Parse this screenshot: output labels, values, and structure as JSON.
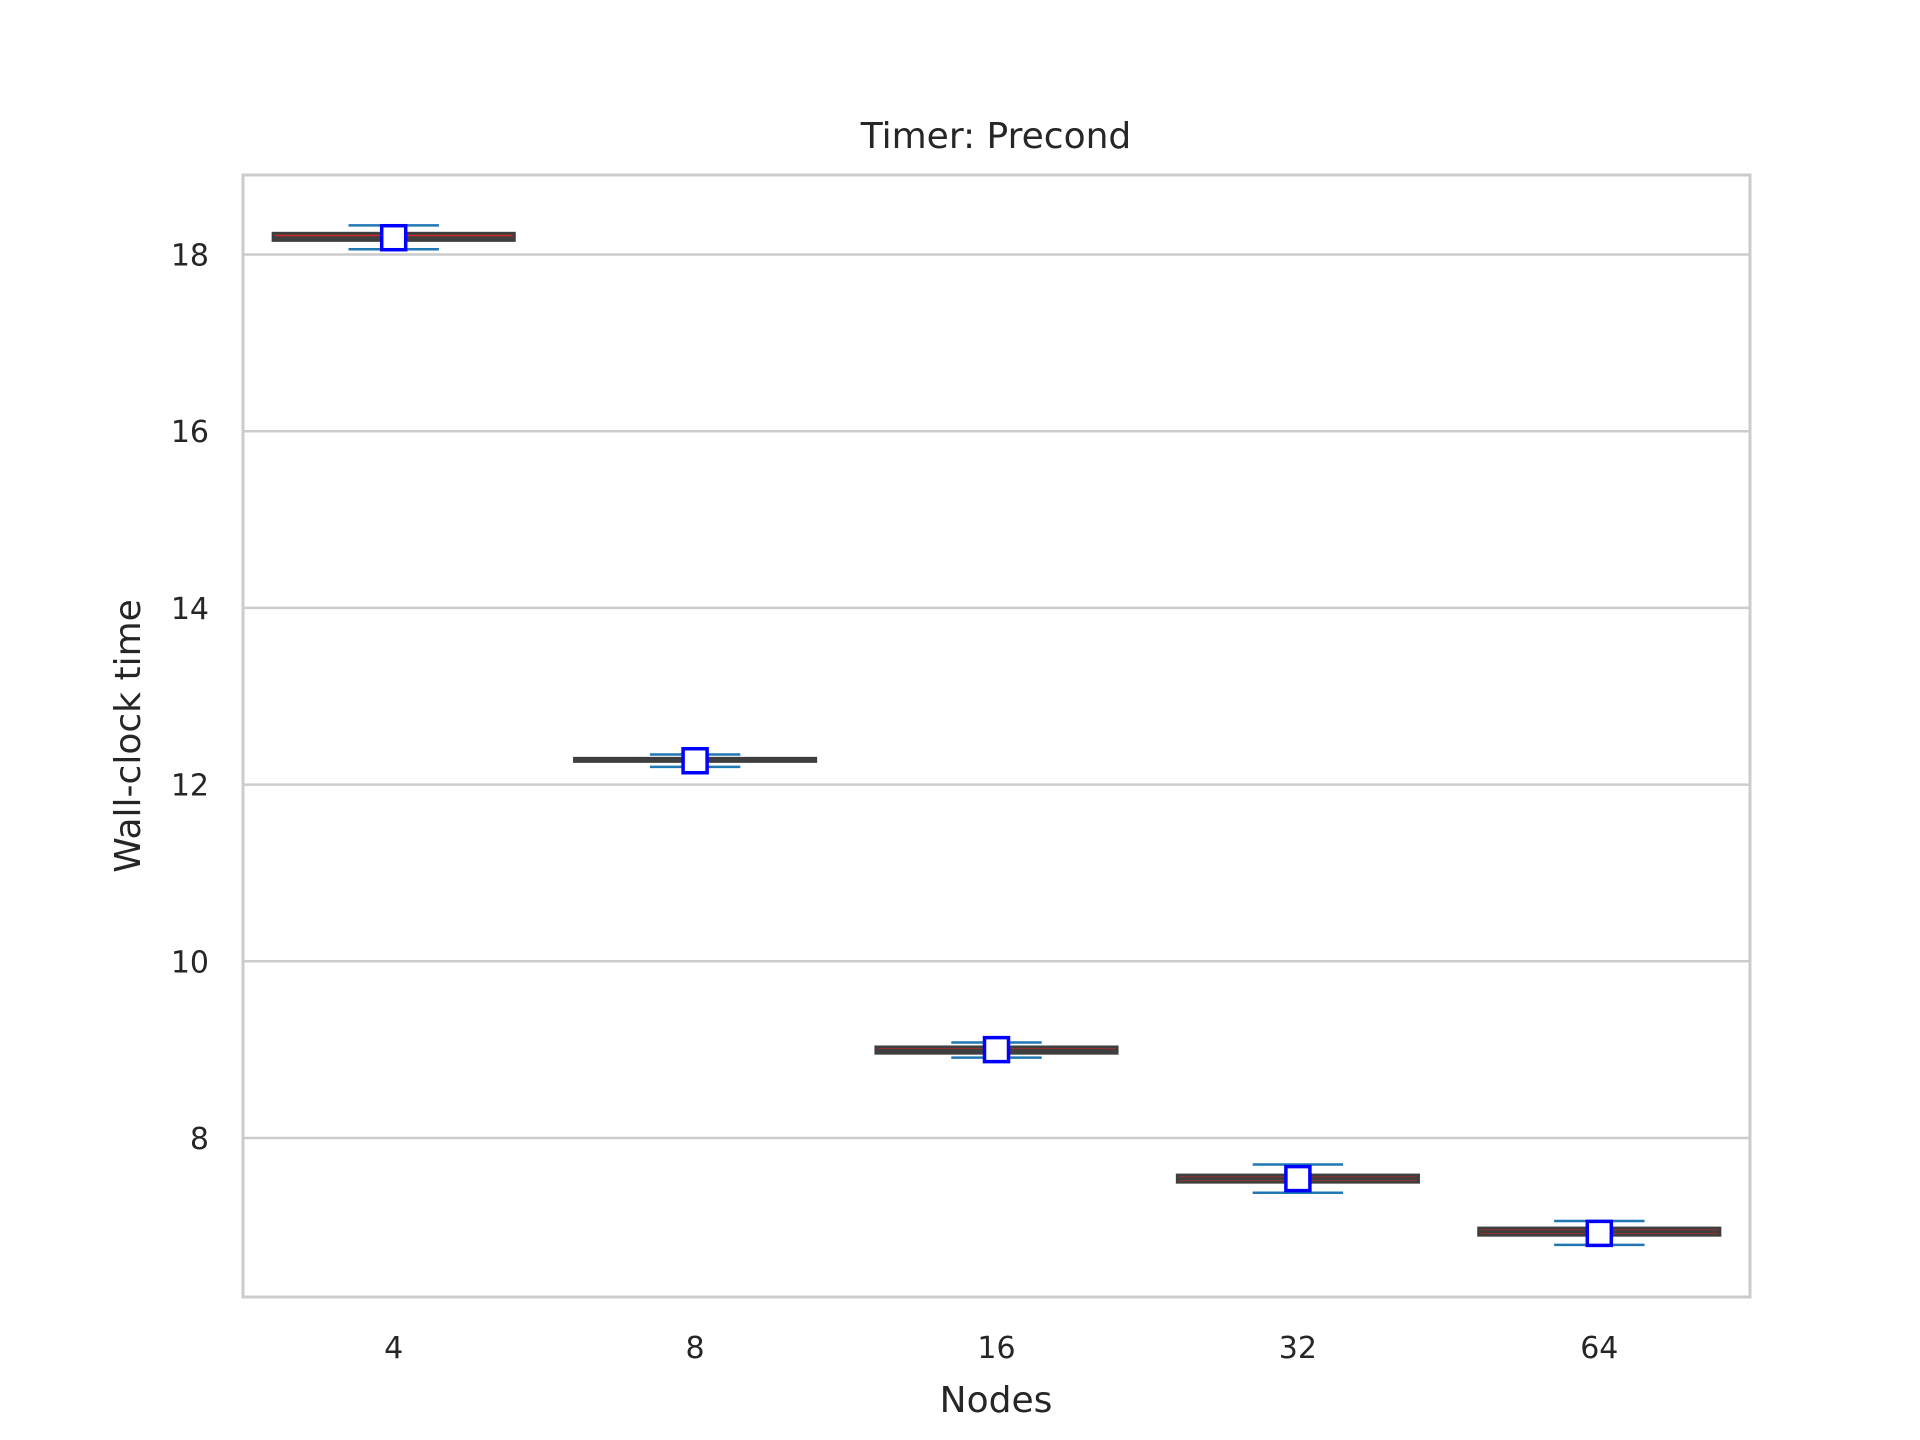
{
  "chart_data": {
    "type": "box",
    "title": "Timer: Precond",
    "xlabel": "Nodes",
    "ylabel": "Wall-clock time",
    "categories": [
      "4",
      "8",
      "16",
      "32",
      "64"
    ],
    "yticks": [
      "8",
      "10",
      "12",
      "14",
      "16",
      "18"
    ],
    "ylim": [
      6.2,
      18.9
    ],
    "grid": "y",
    "boxes": [
      {
        "category": "4",
        "q1": 18.16,
        "median": 18.19,
        "q3": 18.24,
        "whisker_low": 18.06,
        "whisker_high": 18.33,
        "mean": 18.19
      },
      {
        "category": "8",
        "q1": 12.28,
        "median": 12.28,
        "q3": 12.28,
        "whisker_low": 12.2,
        "whisker_high": 12.34,
        "mean": 12.27
      },
      {
        "category": "16",
        "q1": 8.96,
        "median": 8.99,
        "q3": 9.03,
        "whisker_low": 8.91,
        "whisker_high": 9.08,
        "mean": 9.0
      },
      {
        "category": "32",
        "q1": 7.5,
        "median": 7.54,
        "q3": 7.58,
        "whisker_low": 7.38,
        "whisker_high": 7.7,
        "mean": 7.54
      },
      {
        "category": "64",
        "q1": 6.9,
        "median": 6.94,
        "q3": 6.98,
        "whisker_low": 6.79,
        "whisker_high": 7.06,
        "mean": 6.92
      }
    ],
    "colors": {
      "box_fill": "#d62728",
      "box_edge": "#3f3f3f",
      "whisker": "#1f77b4",
      "mean_marker_edge": "#0000ff",
      "mean_marker_fill": "#ffffff"
    }
  }
}
